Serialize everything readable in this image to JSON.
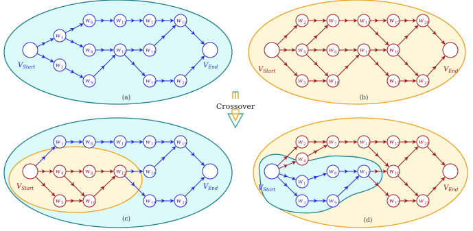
{
  "colors": {
    "cyan_fill": "#dcfafa",
    "cyan_stroke": "#1c7f8f",
    "yellow_fill": "#fdf6d8",
    "yellow_stroke": "#f0a020",
    "blue": "#2828dc",
    "red": "#a0141e",
    "arrow_green": "#3aa88f",
    "arrow_gold": "#e0a020"
  },
  "crossover_label": "Crossover",
  "panels": [
    {
      "id": "a",
      "label": "(a)",
      "start": "V",
      "start_sub": "Start",
      "end": "V",
      "end_sub": "End",
      "nodes": [
        {
          "k": "w1",
          "n": "1"
        },
        {
          "k": "w3",
          "n": "3"
        },
        {
          "k": "w6",
          "n": "6"
        },
        {
          "k": "w8",
          "n": "8"
        },
        {
          "k": "w9",
          "n": "9"
        },
        {
          "k": "w11",
          "n": "11"
        },
        {
          "k": "w12",
          "n": "12"
        },
        {
          "k": "w13",
          "n": "13"
        },
        {
          "k": "w14",
          "n": "14"
        },
        {
          "k": "w18",
          "n": "18"
        },
        {
          "k": "w19",
          "n": "19"
        },
        {
          "k": "w21",
          "n": "21"
        }
      ]
    },
    {
      "id": "b",
      "label": "(b)",
      "start": "V",
      "start_sub": "Start",
      "end": "V",
      "end_sub": "End",
      "nodes": [
        {
          "k": "w2",
          "n": "2"
        },
        {
          "k": "w4",
          "n": "4"
        },
        {
          "k": "w5",
          "n": "5"
        },
        {
          "k": "w7",
          "n": "7"
        },
        {
          "k": "w8",
          "n": "8"
        },
        {
          "k": "w10",
          "n": "10"
        },
        {
          "k": "w11",
          "n": "11"
        },
        {
          "k": "w12",
          "n": "12"
        },
        {
          "k": "w15",
          "n": "15"
        },
        {
          "k": "w16",
          "n": "16"
        },
        {
          "k": "w17",
          "n": "17"
        },
        {
          "k": "w20",
          "n": "20"
        },
        {
          "k": "w22",
          "n": "22"
        }
      ]
    },
    {
      "id": "c",
      "label": "(c)",
      "start": "V",
      "start_sub": "Start",
      "end": "V",
      "end_sub": "End",
      "nodes": [
        {
          "k": "w1",
          "n": "1"
        },
        {
          "k": "w4",
          "n": "4"
        },
        {
          "k": "w5",
          "n": "5"
        },
        {
          "k": "w6",
          "n": "6"
        },
        {
          "k": "w8",
          "n": "8"
        },
        {
          "k": "w10",
          "n": "10"
        },
        {
          "k": "w11",
          "n": "11"
        },
        {
          "k": "w12",
          "n": "12"
        },
        {
          "k": "w13",
          "n": "13"
        },
        {
          "k": "w14",
          "n": "14"
        },
        {
          "k": "w18",
          "n": "18"
        },
        {
          "k": "w19",
          "n": "19"
        },
        {
          "k": "w21",
          "n": "21"
        }
      ]
    },
    {
      "id": "d",
      "label": "(d)",
      "start": "V",
      "start_sub": "Start",
      "end": "V",
      "end_sub": "End",
      "nodes": [
        {
          "k": "w1",
          "n": "1"
        },
        {
          "k": "w2",
          "n": "2"
        },
        {
          "k": "w3",
          "n": "3"
        },
        {
          "k": "w4",
          "n": "4"
        },
        {
          "k": "w7",
          "n": "7"
        },
        {
          "k": "w8",
          "n": "8"
        },
        {
          "k": "w9",
          "n": "9"
        },
        {
          "k": "w11",
          "n": "11"
        },
        {
          "k": "w12",
          "n": "12"
        },
        {
          "k": "w15",
          "n": "15"
        },
        {
          "k": "w16",
          "n": "16"
        },
        {
          "k": "w17",
          "n": "17"
        },
        {
          "k": "w20",
          "n": "20"
        },
        {
          "k": "w22",
          "n": "22"
        }
      ]
    }
  ]
}
